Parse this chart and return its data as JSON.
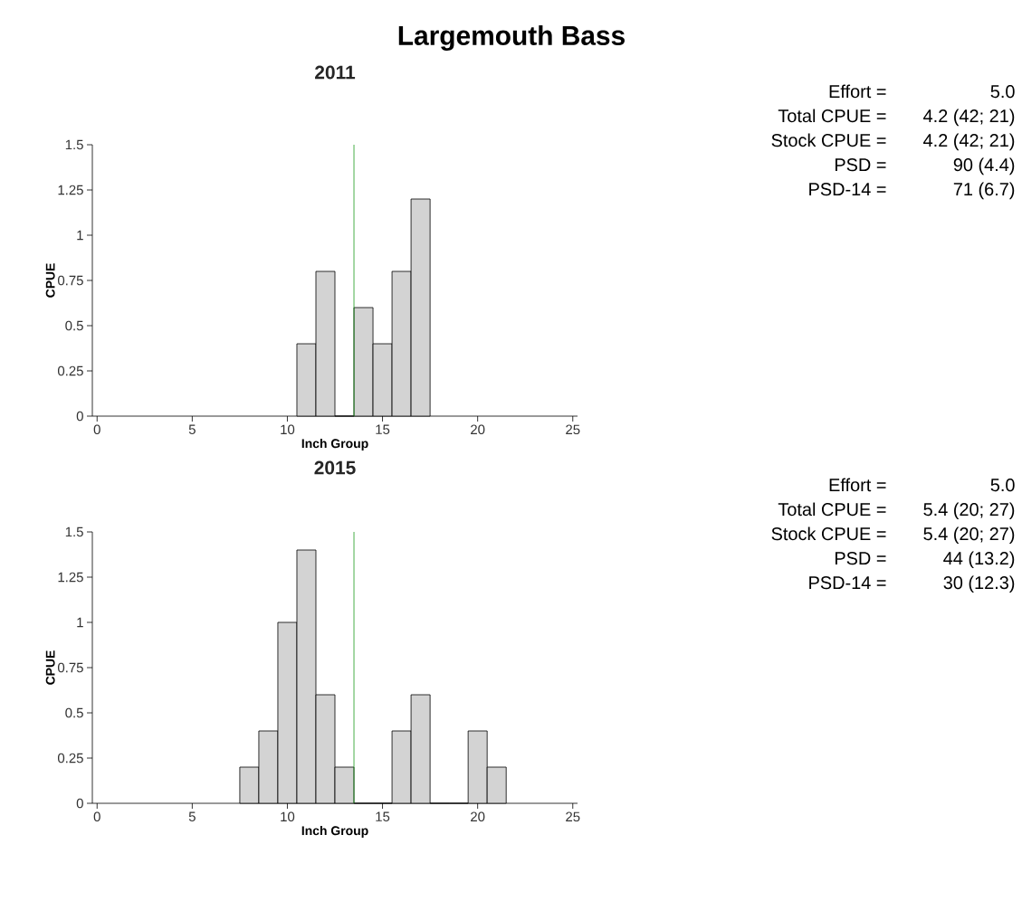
{
  "chart_data": [
    {
      "type": "histogram",
      "title": "Largemouth Bass",
      "subtitle": "2011",
      "xlabel": "Inch Group",
      "ylabel": "CPUE",
      "color": "#d3d3d3",
      "bins": [
        10.5,
        11.5,
        12.5,
        13.5,
        14.5,
        15.5,
        16.5,
        17.5
      ],
      "values": [
        0.4,
        0.8,
        0,
        0.6,
        0.4,
        0.8,
        1.2
      ],
      "xlim": [
        -0.25,
        25.25
      ],
      "ylim": [
        0,
        1.5
      ],
      "xticks": [
        0,
        5,
        10,
        15,
        20,
        25
      ],
      "yticks": [
        0,
        0.25,
        0.5,
        0.75,
        1,
        1.25,
        1.5
      ],
      "ref_lines": [
        {
          "axis": "x",
          "value": 13.5,
          "color": "#1a9a1a"
        }
      ],
      "annotations": [
        "Effort =",
        "5.0",
        "Total CPUE =",
        "4.2 (42; 21)",
        "Stock CPUE =",
        "4.2 (42; 21)",
        "PSD =",
        "90 (4.4)",
        "PSD-14 =",
        "71 (6.7)"
      ]
    },
    {
      "type": "histogram",
      "subtitle": "2015",
      "xlabel": "Inch Group",
      "ylabel": "CPUE",
      "color": "#d3d3d3",
      "bins": [
        7.5,
        8.5,
        9.5,
        10.5,
        11.5,
        12.5,
        13.5,
        14.5,
        15.5,
        16.5,
        17.5,
        18.5,
        19.5,
        20.5,
        21.5
      ],
      "values": [
        0.2,
        0.4,
        1,
        1.4,
        0.6,
        0.2,
        0,
        0,
        0.4,
        0.6,
        0,
        0,
        0.4,
        0.2
      ],
      "xlim": [
        -0.25,
        25.25
      ],
      "ylim": [
        0,
        1.5
      ],
      "xticks": [
        0,
        5,
        10,
        15,
        20,
        25
      ],
      "yticks": [
        0,
        0.25,
        0.5,
        0.75,
        1,
        1.25,
        1.5
      ],
      "ref_lines": [
        {
          "axis": "x",
          "value": 13.5,
          "color": "#1a9a1a"
        }
      ],
      "annotations": [
        "Effort =",
        "5.0",
        "Total CPUE =",
        "5.4 (20; 27)",
        "Stock CPUE =",
        "5.4 (20; 27)",
        "PSD =",
        "44 (13.2)",
        "PSD-14 =",
        "30 (12.3)"
      ]
    }
  ]
}
